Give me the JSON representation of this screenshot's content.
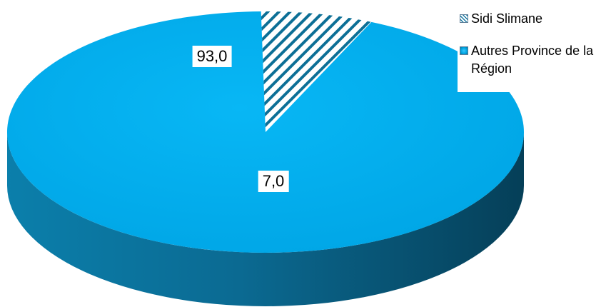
{
  "chart_data": {
    "type": "pie",
    "title": "",
    "categories": [
      "Sidi Slimane",
      "Autres Province de la Région"
    ],
    "values": [
      7.0,
      93.0
    ],
    "value_labels": [
      "7,0",
      "93,0"
    ],
    "legend_position": "top-right",
    "style": "3d",
    "colors": {
      "autres": "#00aeef",
      "autres_side": "#0a6f96",
      "autres_side_dark": "#064a66",
      "sidi_pattern": "hatched"
    }
  }
}
